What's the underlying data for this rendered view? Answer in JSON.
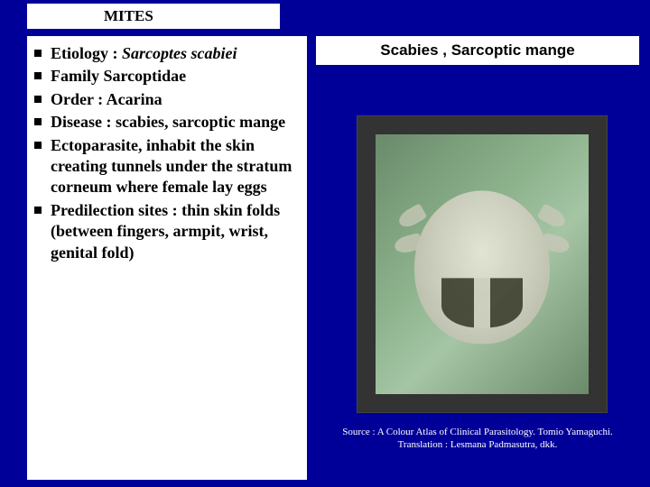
{
  "header": {
    "title": "MITES"
  },
  "rightTitle": "Scabies , Sarcoptic mange",
  "bullets": [
    {
      "prefix": "Etiology : ",
      "italic": "Sarcoptes scabiei",
      "suffix": ""
    },
    {
      "text": "Family Sarcoptidae"
    },
    {
      "text": "Order : Acarina"
    },
    {
      "text": "Disease : scabies, sarcoptic mange"
    },
    {
      "text": "Ectoparasite, inhabit the skin creating tunnels under the  stratum corneum where female lay eggs"
    },
    {
      "text": "Predilection sites : thin skin folds (between fingers, armpit, wrist, genital fold)"
    }
  ],
  "source": {
    "line1": "Source : A Colour Atlas of Clinical Parasitology. Tomio Yamaguchi.",
    "line2": "Translation : Lesmana Padmasutra, dkk."
  },
  "colors": {
    "slideBackground": "#000099",
    "panelBackground": "#ffffff",
    "textColor": "#000000",
    "sourceTextColor": "#ffffff"
  }
}
